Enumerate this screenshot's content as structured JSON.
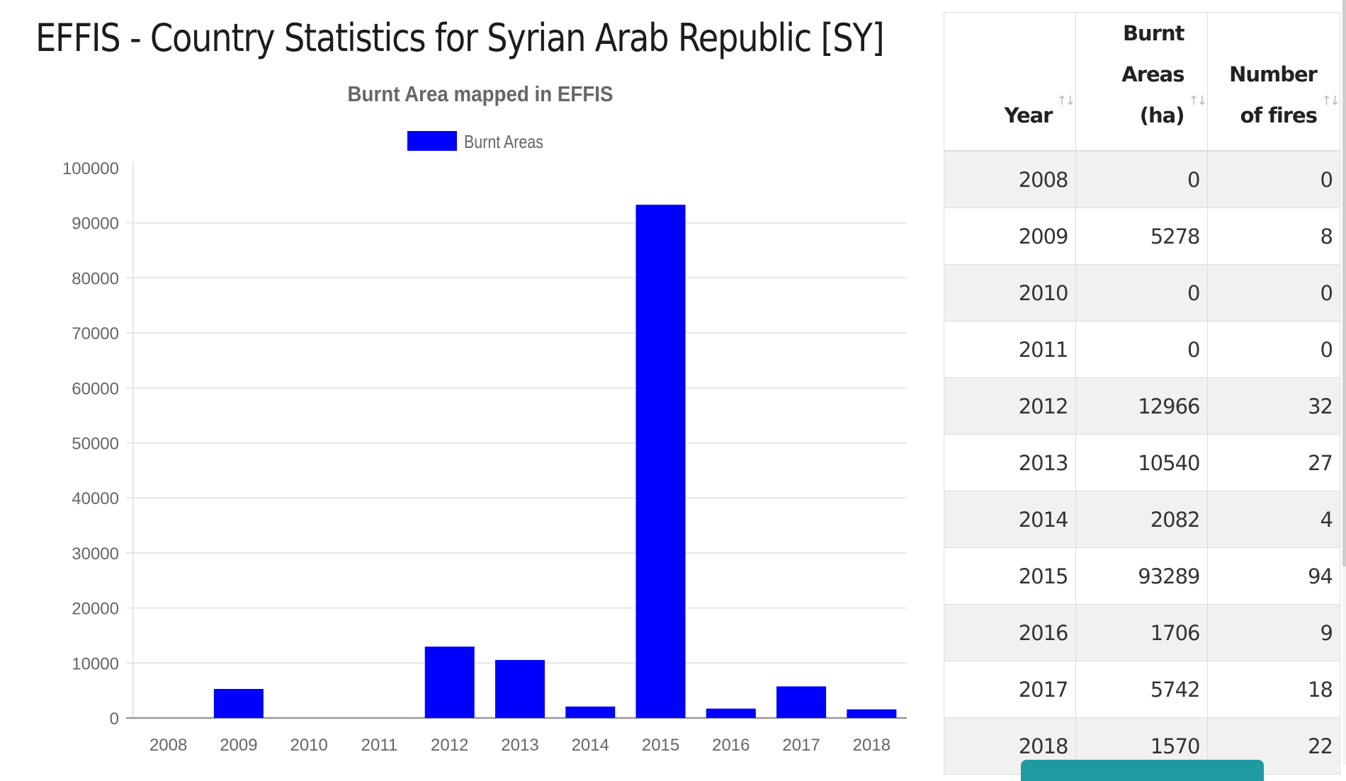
{
  "page": {
    "title": "EFFIS - Country Statistics for Syrian Arab Republic [SY]"
  },
  "chart_data": {
    "type": "bar",
    "title": "Burnt Area mapped in EFFIS",
    "xlabel": "",
    "ylabel": "",
    "legend": {
      "entries": [
        "Burnt Areas"
      ],
      "placement": "top-center"
    },
    "categories": [
      "2008",
      "2009",
      "2010",
      "2011",
      "2012",
      "2013",
      "2014",
      "2015",
      "2016",
      "2017",
      "2018"
    ],
    "series": [
      {
        "name": "Burnt Areas",
        "color": "#0000ff",
        "values": [
          0,
          5278,
          0,
          0,
          12966,
          10540,
          2082,
          93289,
          1706,
          5742,
          1570
        ]
      }
    ],
    "ylim": [
      0,
      100000
    ],
    "yticks": [
      "0",
      "10000",
      "20000",
      "30000",
      "40000",
      "50000",
      "60000",
      "70000",
      "80000",
      "90000",
      "100000"
    ],
    "ytick_values": [
      0,
      10000,
      20000,
      30000,
      40000,
      50000,
      60000,
      70000,
      80000,
      90000,
      100000
    ],
    "grid": true
  },
  "table": {
    "columns": [
      {
        "line1": "",
        "line2": "Year",
        "sort_icon": "↑↓"
      },
      {
        "line1": "Burnt",
        "line2": "Areas (ha)",
        "sort_icon": "↑↓"
      },
      {
        "line1": "Number",
        "line2": "of fires",
        "sort_icon": "↑↓"
      }
    ],
    "rows": [
      [
        "2008",
        "0",
        "0"
      ],
      [
        "2009",
        "5278",
        "8"
      ],
      [
        "2010",
        "0",
        "0"
      ],
      [
        "2011",
        "0",
        "0"
      ],
      [
        "2012",
        "12966",
        "32"
      ],
      [
        "2013",
        "10540",
        "27"
      ],
      [
        "2014",
        "2082",
        "4"
      ],
      [
        "2015",
        "93289",
        "94"
      ],
      [
        "2016",
        "1706",
        "9"
      ],
      [
        "2017",
        "5742",
        "18"
      ],
      [
        "2018",
        "1570",
        "22"
      ]
    ]
  },
  "colors": {
    "bar": "#0000ff",
    "button": "#1f9aa3"
  }
}
